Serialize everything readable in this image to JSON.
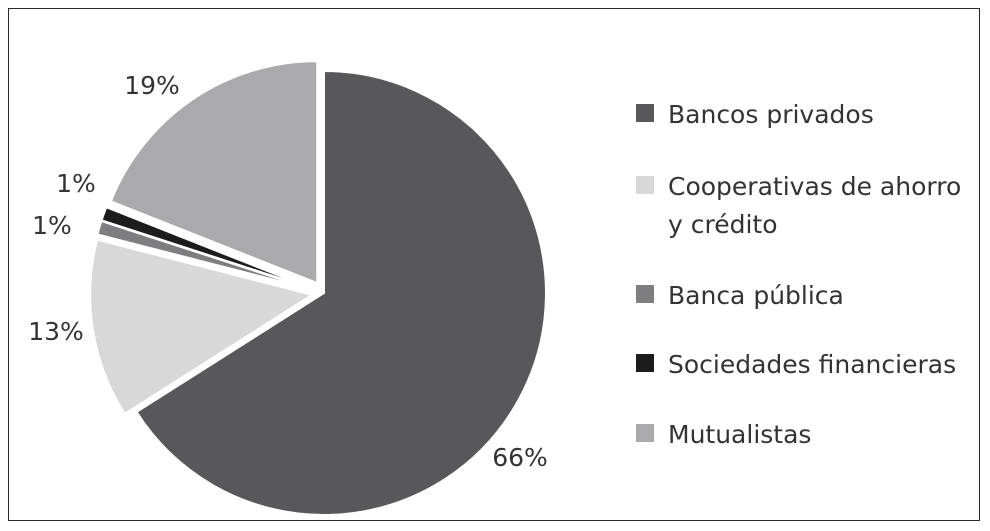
{
  "chart_data": {
    "type": "pie",
    "title": "",
    "slices": [
      {
        "label": "Bancos privados",
        "value": 66,
        "display": "66%",
        "color": "#58585a"
      },
      {
        "label": "Cooperativas de ahorro y crédito",
        "value": 13,
        "display": "13%",
        "color": "#d8d8d8"
      },
      {
        "label": "Banca pública",
        "value": 1,
        "display": "1%",
        "color": "#7e7e80"
      },
      {
        "label": "Sociedades financieras",
        "value": 1,
        "display": "1%",
        "color": "#1c1c1c"
      },
      {
        "label": "Mutualistas",
        "value": 19,
        "display": "19%",
        "color": "#aaaaac"
      }
    ],
    "legend_position": "right"
  }
}
